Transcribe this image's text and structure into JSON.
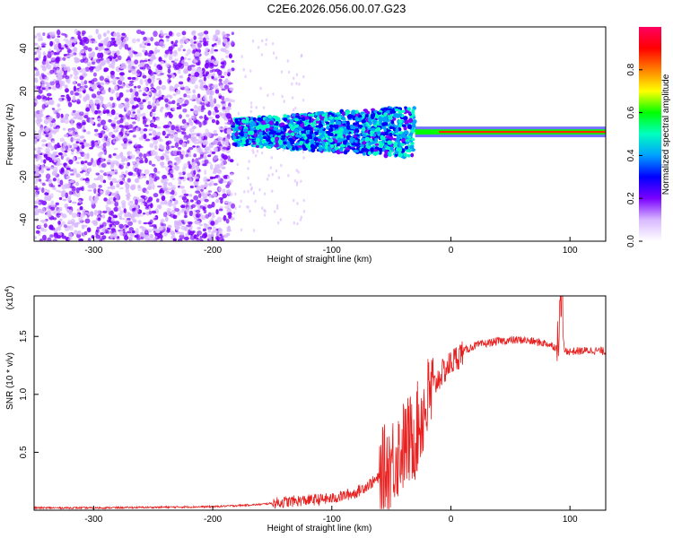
{
  "title": "C2E6.2026.056.00.07.G23",
  "colors": {
    "snr_line": "#e8201f",
    "scatter": "#6a00ff",
    "axes": "#000000"
  },
  "chart_data": [
    {
      "type": "heatmap",
      "xlabel": "Height of straight line (km)",
      "ylabel": "Frequency (Hz)",
      "xlim": [
        -350,
        130
      ],
      "ylim": [
        -50,
        50
      ],
      "x_ticks": [
        -300,
        -200,
        -100,
        0,
        100
      ],
      "y_ticks": [
        -40,
        -20,
        0,
        20,
        40
      ],
      "colorbar": {
        "label": "Normalized spectral amplitude",
        "range": [
          0,
          1
        ],
        "ticks": [
          "0.0",
          "0.2",
          "0.4",
          "0.6",
          "0.8"
        ],
        "colormap": [
          "#ffffff",
          "#d8b8ff",
          "#7a00ff",
          "#0000ff",
          "#00a0ff",
          "#00ffc0",
          "#00ff00",
          "#ffff00",
          "#ff8000",
          "#ff0000",
          "#ff0060"
        ]
      },
      "regions": [
        {
          "x_range": [
            -350,
            -183
          ],
          "freq_range": [
            -50,
            48
          ],
          "amplitude": "low (noise)"
        },
        {
          "x_range": [
            -183,
            -30
          ],
          "freq_range": [
            -10,
            15
          ],
          "amplitude": "medium"
        },
        {
          "x_range": [
            -30,
            130
          ],
          "freq_center": 1,
          "amplitude": "high (carrier)"
        }
      ]
    },
    {
      "type": "line",
      "xlabel": "Height of straight line (km)",
      "ylabel": "SNR (10 * v/v)",
      "y_multiplier": "(x10",
      "y_multiplier_exp": "4",
      "y_multiplier_close": ")",
      "xlim": [
        -350,
        130
      ],
      "ylim": [
        0,
        1.85
      ],
      "x_ticks": [
        -300,
        -200,
        -100,
        0,
        100
      ],
      "y_ticks": [
        "0.5",
        "1.0",
        "1.5"
      ],
      "series": [
        {
          "x": [
            -350,
            -300,
            -250,
            -200,
            -160,
            -130,
            -100,
            -80,
            -60,
            -50,
            -40,
            -30,
            -25,
            -20,
            -15,
            -10,
            0,
            10,
            20,
            40,
            60,
            80,
            90,
            93,
            95,
            100,
            120,
            130
          ],
          "y": [
            0.02,
            0.02,
            0.025,
            0.03,
            0.05,
            0.08,
            0.1,
            0.15,
            0.28,
            0.42,
            0.55,
            0.65,
            0.8,
            0.92,
            1.05,
            1.15,
            1.27,
            1.37,
            1.42,
            1.46,
            1.47,
            1.44,
            1.4,
            1.8,
            1.38,
            1.37,
            1.38,
            1.37
          ]
        }
      ]
    }
  ]
}
